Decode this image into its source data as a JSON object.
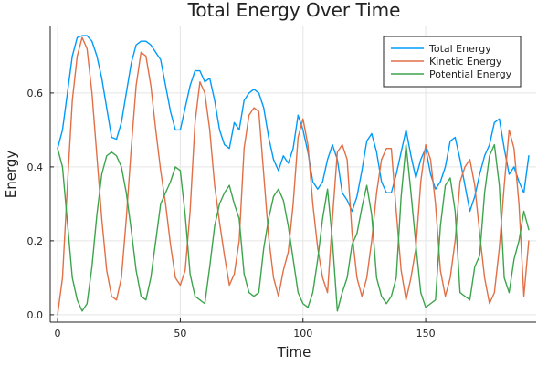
{
  "chart_data": {
    "type": "line",
    "title": "Total Energy Over Time",
    "xlabel": "Time",
    "ylabel": "Energy",
    "xlim": [
      -3,
      195
    ],
    "ylim": [
      -0.02,
      0.78
    ],
    "x_ticks": [
      0,
      50,
      100,
      150
    ],
    "y_ticks": [
      0.0,
      0.2,
      0.4,
      0.6
    ],
    "x_tick_labels": [
      "0",
      "50",
      "100",
      "150"
    ],
    "y_tick_labels": [
      "0.0",
      "0.2",
      "0.4",
      "0.6"
    ],
    "grid": true,
    "legend_position": "top-right",
    "x": [
      0,
      2,
      4,
      6,
      8,
      10,
      12,
      14,
      16,
      18,
      20,
      22,
      24,
      26,
      28,
      30,
      32,
      34,
      36,
      38,
      40,
      42,
      44,
      46,
      48,
      50,
      52,
      54,
      56,
      58,
      60,
      62,
      64,
      66,
      68,
      70,
      72,
      74,
      76,
      78,
      80,
      82,
      84,
      86,
      88,
      90,
      92,
      94,
      96,
      98,
      100,
      102,
      104,
      106,
      108,
      110,
      112,
      114,
      116,
      118,
      120,
      122,
      124,
      126,
      128,
      130,
      132,
      134,
      136,
      138,
      140,
      142,
      144,
      146,
      148,
      150,
      152,
      154,
      156,
      158,
      160,
      162,
      164,
      166,
      168,
      170,
      172,
      174,
      176,
      178,
      180,
      182,
      184,
      186,
      188,
      190,
      192
    ],
    "series": [
      {
        "name": "Total Energy",
        "color": "#009af9",
        "values": [
          0.45,
          0.5,
          0.6,
          0.7,
          0.75,
          0.755,
          0.755,
          0.74,
          0.7,
          0.64,
          0.56,
          0.48,
          0.475,
          0.52,
          0.6,
          0.68,
          0.73,
          0.74,
          0.74,
          0.73,
          0.71,
          0.69,
          0.62,
          0.55,
          0.5,
          0.5,
          0.56,
          0.62,
          0.66,
          0.66,
          0.63,
          0.64,
          0.58,
          0.5,
          0.46,
          0.45,
          0.52,
          0.5,
          0.58,
          0.6,
          0.61,
          0.6,
          0.56,
          0.48,
          0.42,
          0.39,
          0.43,
          0.41,
          0.45,
          0.54,
          0.5,
          0.44,
          0.36,
          0.34,
          0.36,
          0.42,
          0.46,
          0.42,
          0.33,
          0.31,
          0.28,
          0.32,
          0.39,
          0.47,
          0.49,
          0.44,
          0.36,
          0.33,
          0.33,
          0.38,
          0.44,
          0.5,
          0.43,
          0.37,
          0.42,
          0.45,
          0.38,
          0.34,
          0.36,
          0.4,
          0.47,
          0.48,
          0.42,
          0.35,
          0.28,
          0.32,
          0.38,
          0.43,
          0.46,
          0.52,
          0.53,
          0.45,
          0.38,
          0.4,
          0.36,
          0.33,
          0.43
        ]
      },
      {
        "name": "Kinetic Energy",
        "color": "#e26f46",
        "values": [
          0.0,
          0.1,
          0.35,
          0.58,
          0.7,
          0.75,
          0.72,
          0.6,
          0.43,
          0.26,
          0.12,
          0.05,
          0.04,
          0.1,
          0.26,
          0.45,
          0.62,
          0.71,
          0.7,
          0.62,
          0.5,
          0.39,
          0.3,
          0.19,
          0.1,
          0.08,
          0.12,
          0.28,
          0.52,
          0.63,
          0.6,
          0.5,
          0.35,
          0.25,
          0.16,
          0.08,
          0.11,
          0.2,
          0.45,
          0.54,
          0.56,
          0.55,
          0.38,
          0.21,
          0.1,
          0.05,
          0.12,
          0.17,
          0.3,
          0.48,
          0.53,
          0.46,
          0.3,
          0.18,
          0.1,
          0.06,
          0.26,
          0.44,
          0.46,
          0.42,
          0.22,
          0.1,
          0.05,
          0.1,
          0.2,
          0.33,
          0.42,
          0.45,
          0.45,
          0.28,
          0.12,
          0.04,
          0.1,
          0.18,
          0.36,
          0.46,
          0.42,
          0.3,
          0.12,
          0.05,
          0.1,
          0.2,
          0.36,
          0.4,
          0.42,
          0.35,
          0.22,
          0.1,
          0.03,
          0.06,
          0.18,
          0.35,
          0.5,
          0.45,
          0.3,
          0.05,
          0.2
        ]
      },
      {
        "name": "Potential Energy",
        "color": "#3da44d",
        "values": [
          0.45,
          0.4,
          0.25,
          0.1,
          0.04,
          0.01,
          0.03,
          0.13,
          0.27,
          0.38,
          0.43,
          0.44,
          0.43,
          0.4,
          0.33,
          0.23,
          0.12,
          0.05,
          0.04,
          0.1,
          0.2,
          0.3,
          0.33,
          0.36,
          0.4,
          0.39,
          0.27,
          0.11,
          0.05,
          0.04,
          0.03,
          0.13,
          0.24,
          0.3,
          0.33,
          0.35,
          0.3,
          0.26,
          0.11,
          0.06,
          0.05,
          0.06,
          0.18,
          0.26,
          0.32,
          0.34,
          0.31,
          0.24,
          0.15,
          0.06,
          0.03,
          0.02,
          0.06,
          0.15,
          0.26,
          0.34,
          0.2,
          0.01,
          0.06,
          0.1,
          0.19,
          0.22,
          0.29,
          0.35,
          0.27,
          0.1,
          0.05,
          0.03,
          0.05,
          0.1,
          0.32,
          0.46,
          0.33,
          0.19,
          0.06,
          0.02,
          0.03,
          0.04,
          0.24,
          0.35,
          0.37,
          0.28,
          0.06,
          0.05,
          0.04,
          0.13,
          0.16,
          0.33,
          0.43,
          0.46,
          0.35,
          0.1,
          0.06,
          0.15,
          0.2,
          0.28,
          0.23
        ]
      }
    ]
  }
}
